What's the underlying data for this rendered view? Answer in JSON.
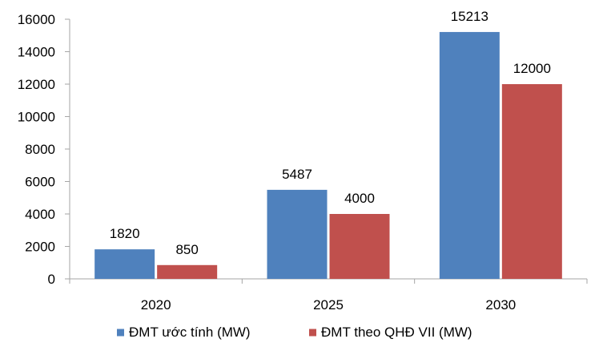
{
  "chart_data": {
    "type": "bar",
    "categories": [
      "2020",
      "2025",
      "2030"
    ],
    "series": [
      {
        "name": "ĐMT ước tính (MW)",
        "color": "#4f81bd",
        "values": [
          1820,
          5487,
          15213
        ]
      },
      {
        "name": "ĐMT theo QHĐ VII (MW)",
        "color": "#c0504d",
        "values": [
          850,
          4000,
          12000
        ]
      }
    ],
    "ylim": [
      0,
      16000
    ],
    "yticks": [
      0,
      2000,
      4000,
      6000,
      8000,
      10000,
      12000,
      14000,
      16000
    ],
    "data_labels": true,
    "grid": false,
    "legend": "bottom"
  }
}
